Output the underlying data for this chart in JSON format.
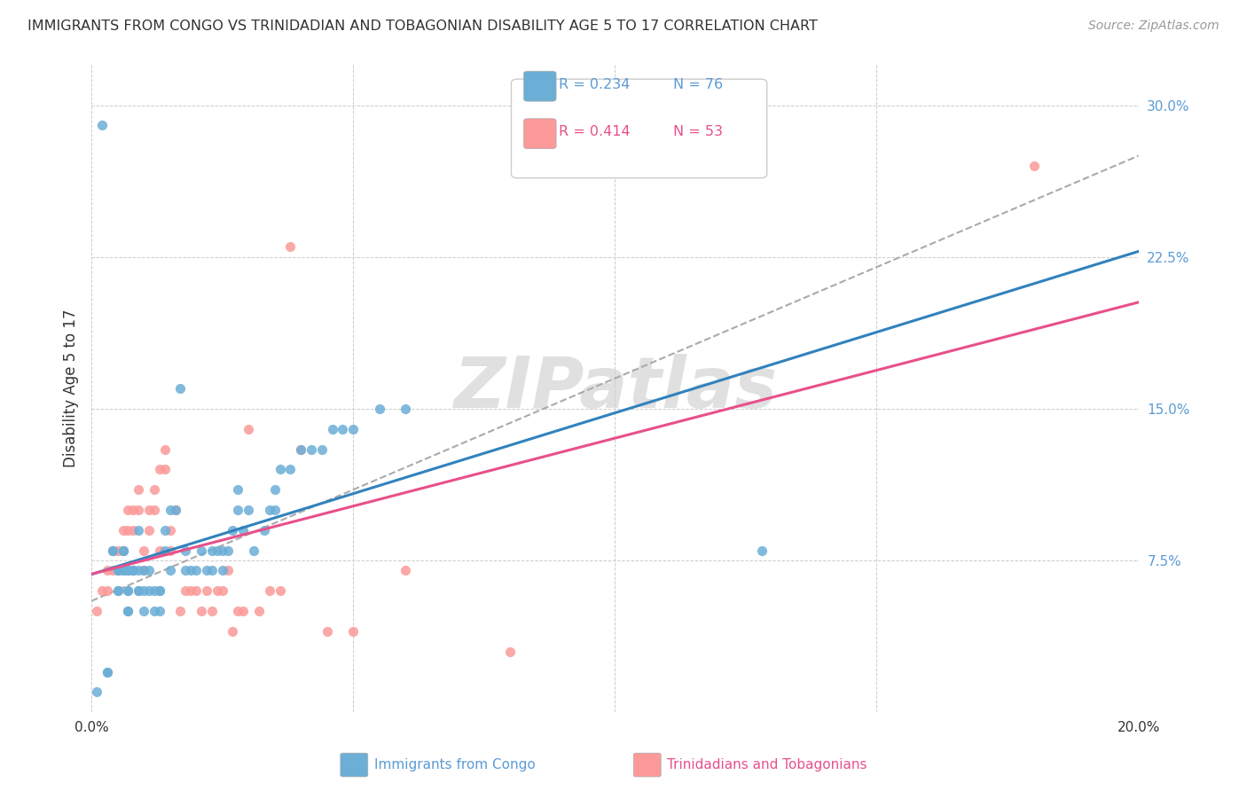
{
  "title": "IMMIGRANTS FROM CONGO VS TRINIDADIAN AND TOBAGONIAN DISABILITY AGE 5 TO 17 CORRELATION CHART",
  "source": "Source: ZipAtlas.com",
  "ylabel": "Disability Age 5 to 17",
  "xlim": [
    0.0,
    0.2
  ],
  "ylim": [
    0.0,
    0.32
  ],
  "xtick_positions": [
    0.0,
    0.05,
    0.1,
    0.15,
    0.2
  ],
  "xtick_labels": [
    "0.0%",
    "",
    "",
    "",
    "20.0%"
  ],
  "ytick_positions": [
    0.0,
    0.075,
    0.15,
    0.225,
    0.3
  ],
  "ytick_labels": [
    "",
    "7.5%",
    "15.0%",
    "22.5%",
    "30.0%"
  ],
  "legend_r1": "R = 0.234",
  "legend_n1": "N = 76",
  "legend_r2": "R = 0.414",
  "legend_n2": "N = 53",
  "color_congo": "#6baed6",
  "color_tt": "#fb9a99",
  "color_line_congo": "#3182bd",
  "color_line_tt": "#e8508a",
  "color_line_dashed": "#aaaaaa",
  "watermark": "ZIPatlas",
  "congo_x": [
    0.001,
    0.002,
    0.003,
    0.003,
    0.004,
    0.004,
    0.005,
    0.005,
    0.005,
    0.005,
    0.006,
    0.006,
    0.006,
    0.006,
    0.007,
    0.007,
    0.007,
    0.007,
    0.007,
    0.007,
    0.008,
    0.008,
    0.008,
    0.009,
    0.009,
    0.009,
    0.009,
    0.01,
    0.01,
    0.01,
    0.011,
    0.011,
    0.012,
    0.012,
    0.013,
    0.013,
    0.013,
    0.014,
    0.014,
    0.015,
    0.015,
    0.016,
    0.017,
    0.018,
    0.018,
    0.019,
    0.02,
    0.021,
    0.022,
    0.023,
    0.023,
    0.024,
    0.025,
    0.025,
    0.026,
    0.027,
    0.028,
    0.028,
    0.029,
    0.03,
    0.031,
    0.033,
    0.034,
    0.035,
    0.035,
    0.036,
    0.038,
    0.04,
    0.042,
    0.044,
    0.046,
    0.048,
    0.05,
    0.055,
    0.06,
    0.128
  ],
  "congo_y": [
    0.01,
    0.29,
    0.02,
    0.02,
    0.08,
    0.08,
    0.06,
    0.06,
    0.07,
    0.07,
    0.07,
    0.07,
    0.08,
    0.08,
    0.05,
    0.05,
    0.06,
    0.06,
    0.07,
    0.07,
    0.07,
    0.07,
    0.07,
    0.06,
    0.06,
    0.07,
    0.09,
    0.05,
    0.06,
    0.07,
    0.06,
    0.07,
    0.05,
    0.06,
    0.05,
    0.06,
    0.06,
    0.08,
    0.09,
    0.07,
    0.1,
    0.1,
    0.16,
    0.07,
    0.08,
    0.07,
    0.07,
    0.08,
    0.07,
    0.07,
    0.08,
    0.08,
    0.07,
    0.08,
    0.08,
    0.09,
    0.1,
    0.11,
    0.09,
    0.1,
    0.08,
    0.09,
    0.1,
    0.1,
    0.11,
    0.12,
    0.12,
    0.13,
    0.13,
    0.13,
    0.14,
    0.14,
    0.14,
    0.15,
    0.15,
    0.08
  ],
  "tt_x": [
    0.001,
    0.002,
    0.003,
    0.003,
    0.004,
    0.004,
    0.005,
    0.005,
    0.006,
    0.006,
    0.007,
    0.007,
    0.008,
    0.008,
    0.009,
    0.009,
    0.01,
    0.01,
    0.011,
    0.011,
    0.012,
    0.012,
    0.013,
    0.013,
    0.014,
    0.014,
    0.015,
    0.015,
    0.016,
    0.017,
    0.018,
    0.019,
    0.02,
    0.021,
    0.022,
    0.023,
    0.024,
    0.025,
    0.026,
    0.027,
    0.028,
    0.029,
    0.03,
    0.032,
    0.034,
    0.036,
    0.038,
    0.04,
    0.045,
    0.05,
    0.06,
    0.08,
    0.18
  ],
  "tt_y": [
    0.05,
    0.06,
    0.06,
    0.07,
    0.07,
    0.08,
    0.07,
    0.08,
    0.08,
    0.09,
    0.09,
    0.1,
    0.09,
    0.1,
    0.1,
    0.11,
    0.07,
    0.08,
    0.09,
    0.1,
    0.1,
    0.11,
    0.08,
    0.12,
    0.12,
    0.13,
    0.08,
    0.09,
    0.1,
    0.05,
    0.06,
    0.06,
    0.06,
    0.05,
    0.06,
    0.05,
    0.06,
    0.06,
    0.07,
    0.04,
    0.05,
    0.05,
    0.14,
    0.05,
    0.06,
    0.06,
    0.23,
    0.13,
    0.04,
    0.04,
    0.07,
    0.03,
    0.27
  ]
}
